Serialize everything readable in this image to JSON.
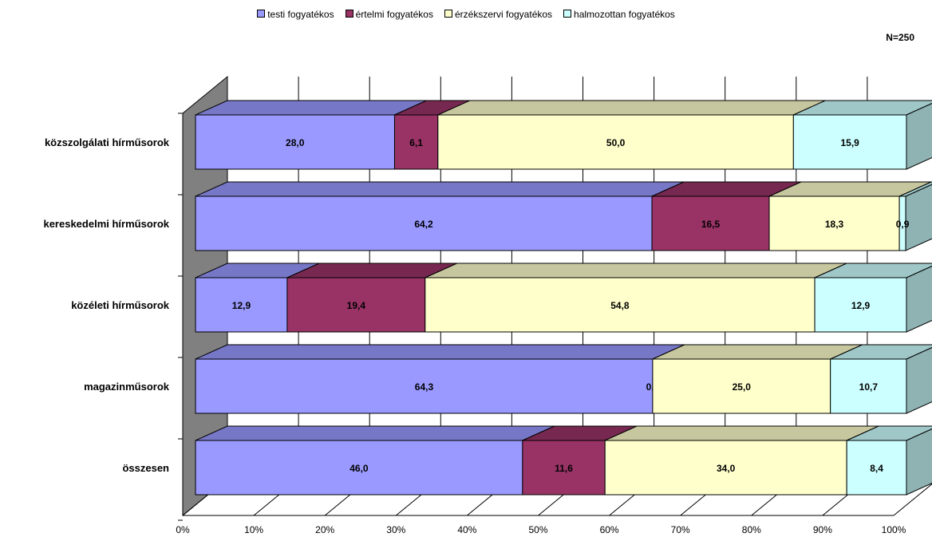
{
  "note": "N=250",
  "chart_data": {
    "type": "bar",
    "orientation": "horizontal",
    "stacked": "percent",
    "categories": [
      "közszolgálati hírműsorok",
      "kereskedelmi hírműsorok",
      "közéleti hírműsorok",
      "magazinműsorok",
      "összesen"
    ],
    "series": [
      {
        "name": "testi fogyatékos",
        "color": "#9999ff",
        "values": [
          28.0,
          64.2,
          12.9,
          64.3,
          46.0
        ],
        "labels": [
          "28,0",
          "64,2",
          "12,9",
          "64,3",
          "46,0"
        ]
      },
      {
        "name": "értelmi fogyatékos",
        "color": "#993366",
        "values": [
          6.1,
          16.5,
          19.4,
          0.0,
          11.6
        ],
        "labels": [
          "6,1",
          "16,5",
          "19,4",
          "0,0",
          "11,6"
        ]
      },
      {
        "name": "érzékszervi fogyatékos",
        "color": "#ffffcc",
        "values": [
          50.0,
          18.3,
          54.8,
          25.0,
          34.0
        ],
        "labels": [
          "50,0",
          "18,3",
          "54,8",
          "25,0",
          "34,0"
        ]
      },
      {
        "name": "halmozottan fogyatékos",
        "color": "#ccffff",
        "values": [
          15.9,
          0.9,
          12.9,
          10.7,
          8.4
        ],
        "labels": [
          "15,9",
          "0,9",
          "12,9",
          "10,7",
          "8,4"
        ]
      }
    ],
    "xticks": [
      "0%",
      "10%",
      "20%",
      "30%",
      "40%",
      "50%",
      "60%",
      "70%",
      "80%",
      "90%",
      "100%"
    ],
    "xlim": [
      0,
      100
    ],
    "legend_position": "top",
    "grid": true
  }
}
